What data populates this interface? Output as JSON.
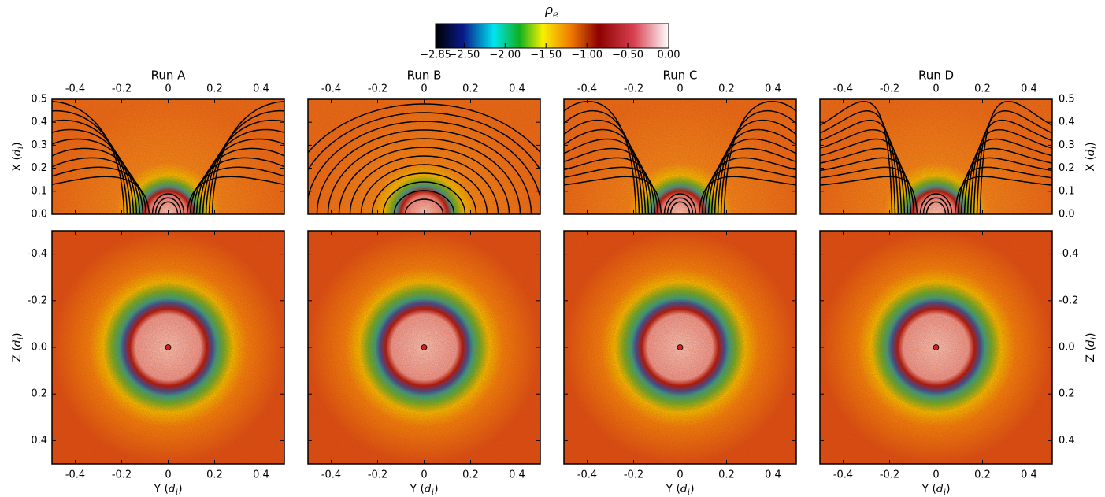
{
  "colorbar": {
    "symbol": "ρ",
    "subscript": "e",
    "lim": [
      -2.85,
      0
    ],
    "ticks": [
      {
        "value": -2.85,
        "label": "−2.85"
      },
      {
        "value": -2.5,
        "label": "−2.50"
      },
      {
        "value": -2,
        "label": "−2.00"
      },
      {
        "value": -1.5,
        "label": "−1.50"
      },
      {
        "value": -1,
        "label": "−1.00"
      },
      {
        "value": -0.5,
        "label": "−0.50"
      },
      {
        "value": 0,
        "label": "0.00"
      }
    ]
  },
  "panels": [
    {
      "title": "Run A"
    },
    {
      "title": "Run B"
    },
    {
      "title": "Run C"
    },
    {
      "title": "Run D"
    }
  ],
  "horizontal_axis": {
    "lim": [
      -0.5,
      0.5
    ],
    "ticks": [
      -0.4,
      -0.2,
      0,
      0.2,
      0.4
    ],
    "label": {
      "pre": "Y (",
      "sym": "d",
      "sub": "i",
      "post": ")"
    }
  },
  "top_vertical_axis": {
    "lim": [
      0,
      0.5
    ],
    "ticks": [
      {
        "value": 0,
        "label": "0.0"
      },
      0.1,
      0.2,
      0.3,
      0.4,
      0.5
    ],
    "label": {
      "pre": "X (",
      "sym": "d",
      "sub": "i",
      "post": ")"
    }
  },
  "bottom_vertical_axis": {
    "lim": [
      -0.5,
      0.5
    ],
    "ticks": [
      -0.4,
      -0.2,
      {
        "value": 0,
        "label": "0.0"
      },
      0.2,
      0.4
    ],
    "label": {
      "pre": "Z (",
      "sym": "d",
      "sub": "i",
      "post": ")"
    }
  }
}
